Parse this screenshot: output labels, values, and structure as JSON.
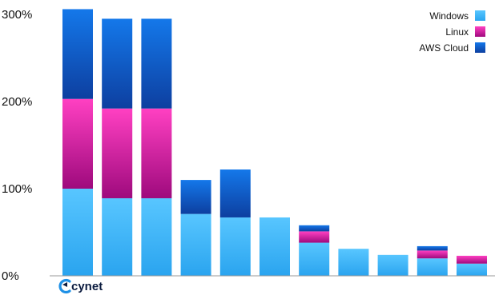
{
  "chart_data": {
    "type": "bar",
    "stacked": true,
    "categories": [
      "",
      "",
      "",
      "",
      "",
      "",
      "",
      "",
      "",
      "",
      ""
    ],
    "series": [
      {
        "name": "Windows",
        "color": "#2bb2f5",
        "values": [
          100,
          89,
          89,
          71,
          67,
          67,
          38,
          31,
          24,
          20,
          14
        ]
      },
      {
        "name": "Linux",
        "color": "#e83ea8",
        "values": [
          103,
          103,
          103,
          0,
          0,
          0,
          13,
          0,
          0,
          9,
          9
        ]
      },
      {
        "name": "AWS Cloud",
        "color": "#1670e0",
        "values": [
          103,
          103,
          103,
          39,
          55,
          0,
          7,
          0,
          0,
          5,
          0
        ]
      }
    ],
    "yticks": [
      "0%",
      "100%",
      "200%",
      "300%"
    ],
    "ylim": [
      0,
      300
    ],
    "grid": false,
    "legend_position": "top-right",
    "title": "",
    "xlabel": "",
    "ylabel": ""
  },
  "brand": {
    "logo_text": "cynet",
    "logo_icon": "cynet-logo-icon"
  }
}
